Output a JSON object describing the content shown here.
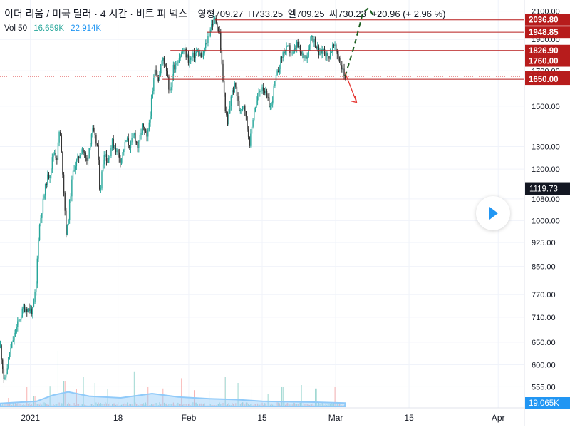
{
  "header": {
    "symbol_name": "이더 리움 / 미국 달러 · 4 시간 · 비트 피 넥스",
    "open_label": "영형",
    "open_value": "709.27",
    "high_label": "H",
    "high_value": "733.25",
    "low_label": "엘",
    "low_value": "709.25",
    "close_label": "씨",
    "close_value": "730.23",
    "change": "+20.96 (+ 2.96 %)"
  },
  "volume": {
    "label": "Vol 50",
    "value1": "16.659K",
    "value2": "22.914K"
  },
  "colors": {
    "up": "#26a69a",
    "down": "#333333",
    "resistance": "#b71c1c",
    "support_dotted": "#e57373",
    "volume_ma": "#90caf9",
    "projection": "#1b5e20",
    "arrow_down": "#e53935",
    "badge_dark": "#131722"
  },
  "icons": {
    "play": "play-icon"
  },
  "chart_data": {
    "type": "candlestick",
    "title": "",
    "scale": "log",
    "y_ticks": [
      555,
      600,
      650,
      710,
      770,
      850,
      925,
      1000,
      1080,
      1200,
      1300,
      1500,
      1700,
      1900,
      2100
    ],
    "y_range": [
      515,
      2130
    ],
    "x_ticks": [
      {
        "label": "2021",
        "x": 0.8
      },
      {
        "label": "18",
        "x": 17.5
      },
      {
        "label": "Feb",
        "x": 31
      },
      {
        "label": "15",
        "x": 45
      },
      {
        "label": "Mar",
        "x": 59
      },
      {
        "label": "15",
        "x": 73
      },
      {
        "label": "Apr",
        "x": 90
      }
    ],
    "x_range": [
      -5,
      95
    ],
    "price_path": [
      [
        -5,
        640
      ],
      [
        -4.2,
        560
      ],
      [
        -3.5,
        610
      ],
      [
        -2.5,
        660
      ],
      [
        -1.5,
        700
      ],
      [
        -0.5,
        735
      ],
      [
        0.5,
        730
      ],
      [
        1.2,
        725
      ],
      [
        1.8,
        790
      ],
      [
        2.3,
        960
      ],
      [
        3,
        1050
      ],
      [
        3.8,
        1150
      ],
      [
        4.5,
        1190
      ],
      [
        5.2,
        1280
      ],
      [
        5.8,
        1250
      ],
      [
        6.3,
        1390
      ],
      [
        7,
        1150
      ],
      [
        7.6,
        940
      ],
      [
        8.3,
        1080
      ],
      [
        9,
        1210
      ],
      [
        9.8,
        1240
      ],
      [
        10.5,
        1300
      ],
      [
        11.5,
        1230
      ],
      [
        12.5,
        1380
      ],
      [
        13.5,
        1300
      ],
      [
        14,
        1100
      ],
      [
        14.8,
        1280
      ],
      [
        15.5,
        1230
      ],
      [
        16.3,
        1320
      ],
      [
        17,
        1290
      ],
      [
        18,
        1240
      ],
      [
        19,
        1330
      ],
      [
        19.8,
        1300
      ],
      [
        20.5,
        1360
      ],
      [
        21.3,
        1290
      ],
      [
        22,
        1400
      ],
      [
        23,
        1330
      ],
      [
        24,
        1560
      ],
      [
        24.5,
        1720
      ],
      [
        25.2,
        1650
      ],
      [
        26,
        1780
      ],
      [
        26.8,
        1700
      ],
      [
        27.3,
        1560
      ],
      [
        28,
        1720
      ],
      [
        29,
        1780
      ],
      [
        30,
        1830
      ],
      [
        31,
        1760
      ],
      [
        31.8,
        1790
      ],
      [
        32.5,
        1820
      ],
      [
        33.5,
        1780
      ],
      [
        34.5,
        1900
      ],
      [
        35.2,
        2000
      ],
      [
        36,
        2040
      ],
      [
        36.8,
        1940
      ],
      [
        37.3,
        1700
      ],
      [
        37.8,
        1520
      ],
      [
        38.3,
        1390
      ],
      [
        39,
        1560
      ],
      [
        39.8,
        1620
      ],
      [
        40.5,
        1480
      ],
      [
        41.5,
        1520
      ],
      [
        42,
        1400
      ],
      [
        42.6,
        1310
      ],
      [
        43.3,
        1470
      ],
      [
        44,
        1540
      ],
      [
        45,
        1620
      ],
      [
        45.8,
        1540
      ],
      [
        46.6,
        1490
      ],
      [
        47.3,
        1620
      ],
      [
        48.2,
        1730
      ],
      [
        49,
        1820
      ],
      [
        50,
        1840
      ],
      [
        50.8,
        1790
      ],
      [
        51.5,
        1870
      ],
      [
        52.5,
        1790
      ],
      [
        53.5,
        1800
      ],
      [
        54.3,
        1930
      ],
      [
        55,
        1880
      ],
      [
        55.8,
        1800
      ],
      [
        56.6,
        1840
      ],
      [
        57.5,
        1780
      ],
      [
        58.5,
        1860
      ],
      [
        59.2,
        1810
      ],
      [
        59.8,
        1760
      ],
      [
        60.3,
        1700
      ],
      [
        60.8,
        1660
      ]
    ],
    "volume_ma_path": [
      [
        -5,
        7
      ],
      [
        2,
        12
      ],
      [
        5,
        26
      ],
      [
        8,
        34
      ],
      [
        12,
        24
      ],
      [
        18,
        20
      ],
      [
        24,
        30
      ],
      [
        29,
        22
      ],
      [
        35,
        18
      ],
      [
        40,
        16
      ],
      [
        45,
        12
      ],
      [
        50,
        11
      ],
      [
        55,
        10
      ],
      [
        60.8,
        8
      ]
    ],
    "volume_spikes": [
      [
        -3.5,
        20
      ],
      [
        0,
        45
      ],
      [
        1.5,
        25
      ],
      [
        4.5,
        48
      ],
      [
        6,
        130
      ],
      [
        7.2,
        60
      ],
      [
        9.5,
        40
      ],
      [
        10.8,
        70
      ],
      [
        13,
        55
      ],
      [
        15.5,
        40
      ],
      [
        20.5,
        82
      ],
      [
        23.2,
        45
      ],
      [
        26,
        42
      ],
      [
        29.5,
        66
      ],
      [
        32,
        38
      ],
      [
        34.8,
        35
      ],
      [
        37.8,
        70
      ],
      [
        40.3,
        55
      ],
      [
        43,
        40
      ],
      [
        46,
        30
      ],
      [
        48.8,
        46
      ],
      [
        52.4,
        50
      ],
      [
        55.2,
        42
      ],
      [
        58.8,
        45
      ]
    ],
    "levels": [
      {
        "label": "2036.80",
        "value": 2036.8,
        "x_start": 36,
        "style": "resistance"
      },
      {
        "label": "1948.85",
        "value": 1948.85,
        "x_start": 34.5,
        "style": "resistance"
      },
      {
        "label": "1826.90",
        "value": 1826.9,
        "x_start": 27.5,
        "style": "resistance"
      },
      {
        "label": "1760.00",
        "value": 1760.0,
        "x_start": 25.2,
        "style": "resistance"
      },
      {
        "label": "1666.00",
        "value": 1666.0,
        "x_start": -5,
        "style": "support-dotted"
      },
      {
        "label": "1650.00",
        "value": 1650.0,
        "x_start": 26,
        "style": "support"
      }
    ],
    "current_price_marker": {
      "label": "1119.73",
      "value": 1119.73
    },
    "volume_marker": {
      "label": "19.065K"
    },
    "projection_up": [
      [
        60.8,
        1666
      ],
      [
        62.5,
        1850
      ],
      [
        64.2,
        2090
      ],
      [
        65.3,
        2125
      ],
      [
        66.3,
        2060
      ]
    ],
    "projection_down": [
      [
        60.8,
        1690
      ],
      [
        63,
        1520
      ]
    ]
  }
}
